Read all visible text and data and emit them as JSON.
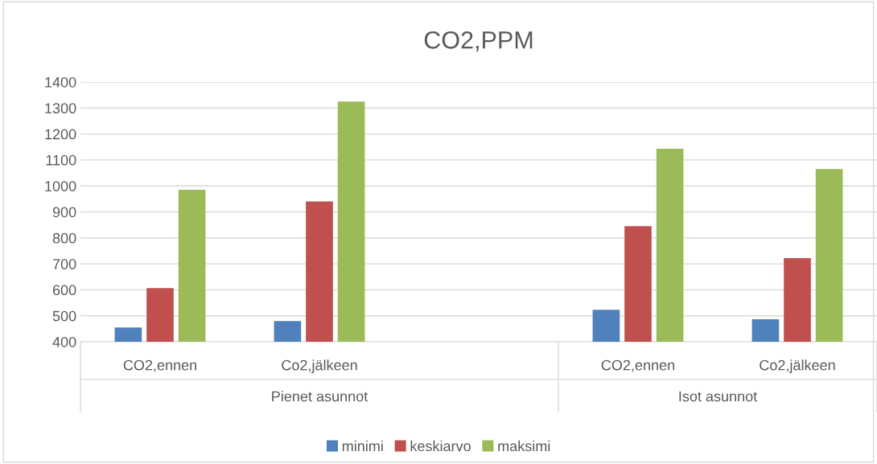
{
  "chart_data": {
    "type": "bar",
    "title": "CO2,PPM",
    "categories": [
      "CO2,ennen",
      "Co2,jälkeen",
      null,
      "CO2,ennen",
      "Co2,jälkeen"
    ],
    "series": [
      {
        "name": "minimi",
        "color": "#4f81bd",
        "values": [
          455,
          480,
          null,
          523,
          487
        ]
      },
      {
        "name": "keskiarvo",
        "color": "#c0504d",
        "values": [
          607,
          940,
          null,
          845,
          722
        ]
      },
      {
        "name": "maksimi",
        "color": "#9bbb59",
        "values": [
          985,
          1325,
          null,
          1143,
          1065
        ]
      }
    ],
    "ylim": [
      400,
      1400
    ],
    "yticks": [
      400,
      500,
      600,
      700,
      800,
      900,
      1000,
      1100,
      1200,
      1300,
      1400
    ],
    "grid": "y",
    "legend": "bottom",
    "annotations": [
      "Pienet asunnot",
      "Isot asunnot"
    ]
  }
}
